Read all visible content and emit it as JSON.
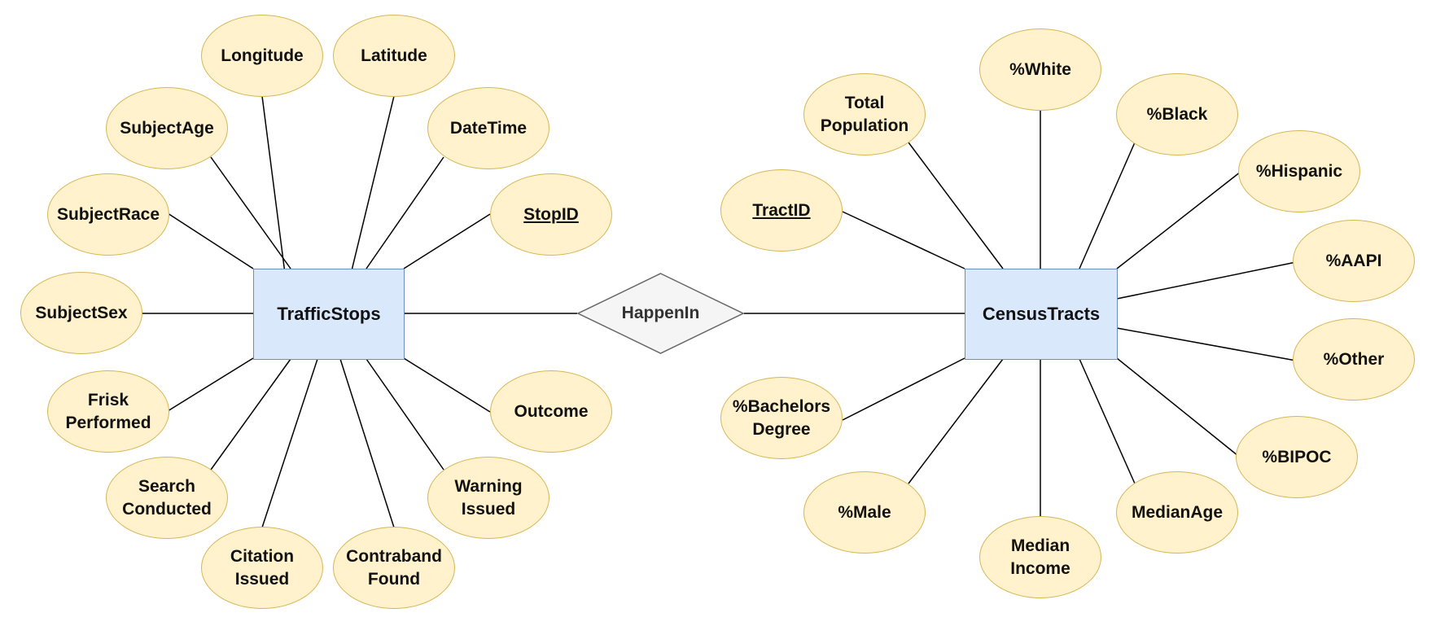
{
  "entities": {
    "traffic_stops": "TrafficStops",
    "census_tracts": "CensusTracts"
  },
  "relationship": "HappenIn",
  "traffic_stops_attributes": [
    "Longitude",
    "Latitude",
    "SubjectAge",
    "DateTime",
    "SubjectRace",
    "StopID",
    "SubjectSex",
    "Frisk\nPerformed",
    "Outcome",
    "Search\nConducted",
    "Warning\nIssued",
    "Citation\nIssued",
    "Contraband\nFound"
  ],
  "census_tracts_attributes": [
    "%White",
    "Total\nPopulation",
    "%Black",
    "%Hispanic",
    "TractID",
    "%AAPI",
    "%Other",
    "%Bachelors\nDegree",
    "%BIPOC",
    "%Male",
    "MedianAge",
    "Median\nIncome"
  ],
  "colors": {
    "entity_fill": "#dae8fc",
    "entity_border": "#6c8ebf",
    "attribute_fill": "#fff2cc",
    "attribute_border": "#d6b656",
    "relationship_fill": "#f5f5f5",
    "relationship_border": "#666666"
  }
}
